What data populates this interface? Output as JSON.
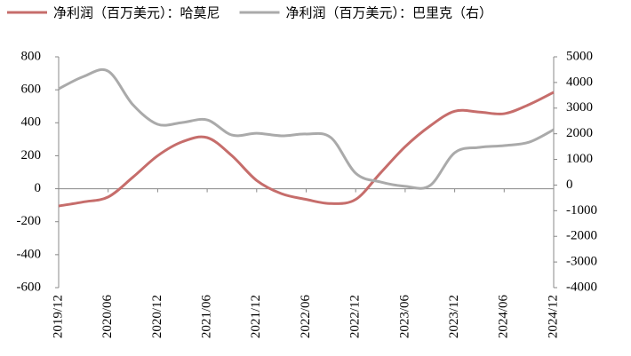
{
  "chart_data": {
    "type": "line",
    "categories": [
      "2019/12",
      null,
      "2020/06",
      null,
      "2020/12",
      null,
      "2021/06",
      null,
      "2021/12",
      null,
      "2022/06",
      null,
      "2022/12",
      null,
      "2023/06",
      null,
      "2023/12",
      null,
      "2024/06",
      null,
      "2024/12"
    ],
    "series": [
      {
        "name": "净利润（百万美元）：哈莫尼",
        "color": "#c66d6b",
        "values": [
          -105,
          -80,
          -50,
          70,
          200,
          285,
          310,
          200,
          50,
          -30,
          -65,
          -90,
          -65,
          95,
          255,
          380,
          470,
          465,
          455,
          510,
          585
        ]
      },
      {
        "name": "净利润（百万美元）：巴里克（右）",
        "color": "#aaaaaa",
        "axis": "y2",
        "values": [
          3750,
          4230,
          4440,
          3130,
          2370,
          2440,
          2540,
          1950,
          2020,
          1920,
          1990,
          1850,
          460,
          120,
          -50,
          -20,
          1260,
          1470,
          1540,
          1670,
          2160
        ]
      }
    ],
    "ylim": [
      -600,
      800
    ],
    "yticks": [
      -600,
      -400,
      -200,
      0,
      200,
      400,
      600,
      800
    ],
    "y2lim": [
      -4000,
      5000
    ],
    "y2ticks": [
      -4000,
      -3000,
      -2000,
      -1000,
      0,
      1000,
      2000,
      3000,
      4000,
      5000
    ],
    "legend": "top"
  }
}
